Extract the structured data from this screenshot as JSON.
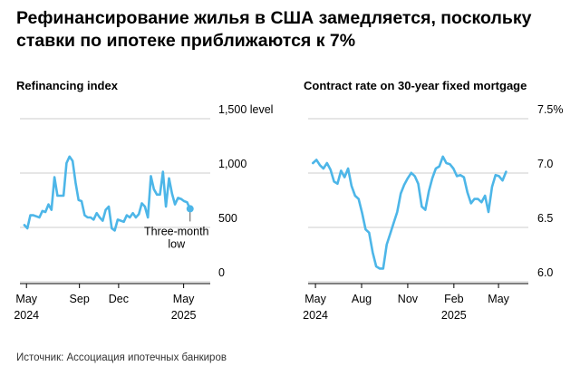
{
  "title": "Рефинансирование жилья в США замедляется, поскольку ставки по ипотеке приближаются к 7%",
  "source": "Источник: Ассоциация ипотечных банкиров",
  "colors": {
    "line": "#4db6e8",
    "grid": "#cccccc",
    "axis": "#000000"
  },
  "chart_data": [
    {
      "type": "line",
      "title": "Refinancing index",
      "yticks": [
        {
          "value": 1500,
          "label": "1,500 level"
        },
        {
          "value": 1000,
          "label": "1,000"
        },
        {
          "value": 500,
          "label": "500"
        },
        {
          "value": 0,
          "label": "0"
        }
      ],
      "ylim": [
        0,
        1500
      ],
      "xticks": [
        {
          "x": "2024-05-01",
          "label": "May",
          "year": "2024"
        },
        {
          "x": "2024-09-01",
          "label": "Sep",
          "year": ""
        },
        {
          "x": "2024-12-01",
          "label": "Dec",
          "year": ""
        },
        {
          "x": "2025-05-01",
          "label": "May",
          "year": "2025"
        }
      ],
      "xlim": [
        "2024-04-20",
        "2025-06-15"
      ],
      "annotation": {
        "text": [
          "Three-month",
          "low"
        ],
        "x": "2025-05-16"
      },
      "series": [
        {
          "x": [
            "2024-04-26",
            "2024-05-03",
            "2024-05-10",
            "2024-05-17",
            "2024-05-24",
            "2024-05-31",
            "2024-06-07",
            "2024-06-14",
            "2024-06-21",
            "2024-06-28",
            "2024-07-05",
            "2024-07-12",
            "2024-07-19",
            "2024-07-26",
            "2024-08-02",
            "2024-08-09",
            "2024-08-16",
            "2024-08-23",
            "2024-08-30",
            "2024-09-06",
            "2024-09-13",
            "2024-09-20",
            "2024-09-27",
            "2024-10-04",
            "2024-10-11",
            "2024-10-18",
            "2024-10-25",
            "2024-11-01",
            "2024-11-08",
            "2024-11-15",
            "2024-11-22",
            "2024-11-29",
            "2024-12-06",
            "2024-12-13",
            "2024-12-20",
            "2024-12-27",
            "2025-01-03",
            "2025-01-10",
            "2025-01-17",
            "2025-01-24",
            "2025-01-31",
            "2025-02-07",
            "2025-02-14",
            "2025-02-21",
            "2025-02-28",
            "2025-03-07",
            "2025-03-14",
            "2025-03-21",
            "2025-03-28",
            "2025-04-04",
            "2025-04-11",
            "2025-04-18",
            "2025-04-25",
            "2025-05-02",
            "2025-05-09",
            "2025-05-16"
          ],
          "y": [
            430,
            400,
            520,
            520,
            510,
            500,
            560,
            550,
            620,
            570,
            870,
            700,
            700,
            700,
            1000,
            1060,
            1020,
            820,
            660,
            650,
            520,
            500,
            500,
            480,
            540,
            500,
            470,
            570,
            600,
            400,
            380,
            480,
            470,
            460,
            520,
            500,
            540,
            500,
            530,
            630,
            600,
            500,
            880,
            760,
            710,
            710,
            920,
            600,
            860,
            720,
            620,
            680,
            670,
            650,
            640,
            580
          ]
        }
      ]
    },
    {
      "type": "line",
      "title": "Contract rate on 30-year fixed mortgage",
      "yticks": [
        {
          "value": 7.5,
          "label": "7.5%"
        },
        {
          "value": 7.0,
          "label": "7.0"
        },
        {
          "value": 6.5,
          "label": "6.5"
        },
        {
          "value": 6.0,
          "label": "6.0"
        }
      ],
      "ylim": [
        6.0,
        7.5
      ],
      "xticks": [
        {
          "x": "2024-05-01",
          "label": "May",
          "year": "2024"
        },
        {
          "x": "2024-08-01",
          "label": "Aug",
          "year": ""
        },
        {
          "x": "2024-11-01",
          "label": "Nov",
          "year": ""
        },
        {
          "x": "2025-02-01",
          "label": "Feb",
          "year": "2025"
        },
        {
          "x": "2025-05-01",
          "label": "May",
          "year": ""
        }
      ],
      "xlim": [
        "2024-04-20",
        "2025-06-15"
      ],
      "series": [
        {
          "x": [
            "2024-04-26",
            "2024-05-03",
            "2024-05-10",
            "2024-05-17",
            "2024-05-24",
            "2024-05-31",
            "2024-06-07",
            "2024-06-14",
            "2024-06-21",
            "2024-06-28",
            "2024-07-05",
            "2024-07-12",
            "2024-07-19",
            "2024-07-26",
            "2024-08-02",
            "2024-08-09",
            "2024-08-16",
            "2024-08-23",
            "2024-08-30",
            "2024-09-06",
            "2024-09-13",
            "2024-09-20",
            "2024-09-27",
            "2024-10-04",
            "2024-10-11",
            "2024-10-18",
            "2024-10-25",
            "2024-11-01",
            "2024-11-08",
            "2024-11-15",
            "2024-11-22",
            "2024-11-29",
            "2024-12-06",
            "2024-12-13",
            "2024-12-20",
            "2024-12-27",
            "2025-01-03",
            "2025-01-10",
            "2025-01-17",
            "2025-01-24",
            "2025-01-31",
            "2025-02-07",
            "2025-02-14",
            "2025-02-21",
            "2025-02-28",
            "2025-03-07",
            "2025-03-14",
            "2025-03-21",
            "2025-03-28",
            "2025-04-04",
            "2025-04-11",
            "2025-04-18",
            "2025-04-25",
            "2025-05-02",
            "2025-05-09",
            "2025-05-16"
          ],
          "y": [
            7.0,
            7.03,
            6.98,
            6.95,
            7.0,
            6.94,
            6.83,
            6.81,
            6.93,
            6.87,
            6.95,
            6.79,
            6.7,
            6.67,
            6.54,
            6.39,
            6.36,
            6.18,
            6.05,
            6.03,
            6.03,
            6.25,
            6.35,
            6.45,
            6.55,
            6.72,
            6.8,
            6.86,
            6.91,
            6.88,
            6.81,
            6.6,
            6.57,
            6.74,
            6.86,
            6.95,
            6.97,
            7.06,
            7.0,
            6.99,
            6.95,
            6.88,
            6.89,
            6.87,
            6.73,
            6.63,
            6.67,
            6.67,
            6.64,
            6.7,
            6.55,
            6.78,
            6.89,
            6.88,
            6.84,
            6.92
          ]
        }
      ]
    }
  ]
}
